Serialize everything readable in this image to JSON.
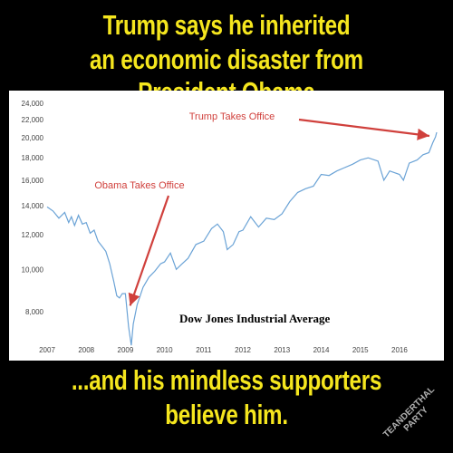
{
  "headline": {
    "line1": "Trump says he inherited",
    "line2": "an economic disaster from President Obama"
  },
  "caption": {
    "line1": "...and his mindless supporters",
    "line2": "believe him."
  },
  "watermark": {
    "line1": "TEANDERTHAL",
    "line2": "PARTY"
  },
  "colors": {
    "headline": "#f5e61e",
    "series": "#6ba3d6",
    "annotation": "#d0403c",
    "background": "#000000"
  },
  "chart_data": {
    "type": "line",
    "title": "Dow Jones Industrial Average",
    "xlabel": "",
    "ylabel": "",
    "xlim": [
      2007.0,
      2016.95
    ],
    "ylim": [
      7000,
      24000
    ],
    "y_log": true,
    "grid": false,
    "x_ticks": [
      "2007",
      "2008",
      "2009",
      "2010",
      "2011",
      "2012",
      "2013",
      "2014",
      "2015",
      "2016"
    ],
    "y_ticks": [
      "24,000",
      "22,000",
      "20,000",
      "18,000",
      "16,000",
      "14,000",
      "12,000",
      "10,000",
      "8,000"
    ],
    "y_tick_values": [
      24000,
      22000,
      20000,
      18000,
      16000,
      14000,
      12000,
      10000,
      8000
    ],
    "series": [
      {
        "x": [
          2007.0,
          2007.15,
          2007.3,
          2007.45,
          2007.55,
          2007.62,
          2007.7,
          2007.8,
          2007.9,
          2008.0,
          2008.1,
          2008.2,
          2008.3,
          2008.4,
          2008.5,
          2008.6,
          2008.7,
          2008.78,
          2008.85,
          2008.92,
          2009.0,
          2009.08,
          2009.15,
          2009.2,
          2009.3,
          2009.45,
          2009.6,
          2009.75,
          2009.9,
          2010.0,
          2010.15,
          2010.3,
          2010.45,
          2010.6,
          2010.8,
          2011.0,
          2011.2,
          2011.35,
          2011.5,
          2011.6,
          2011.75,
          2011.9,
          2012.0,
          2012.2,
          2012.4,
          2012.6,
          2012.8,
          2013.0,
          2013.2,
          2013.4,
          2013.6,
          2013.8,
          2014.0,
          2014.2,
          2014.4,
          2014.6,
          2014.8,
          2015.0,
          2015.2,
          2015.45,
          2015.6,
          2015.75,
          2016.0,
          2016.1,
          2016.25,
          2016.45,
          2016.6,
          2016.75,
          2016.85,
          2016.92,
          2016.95
        ],
        "y": [
          13900,
          13600,
          13100,
          13500,
          12800,
          13200,
          12600,
          13300,
          12700,
          12800,
          12100,
          12300,
          11600,
          11300,
          11000,
          10300,
          9400,
          8700,
          8600,
          8800,
          8800,
          7400,
          6700,
          7500,
          8300,
          9100,
          9600,
          9900,
          10300,
          10400,
          10900,
          10000,
          10300,
          10600,
          11400,
          11600,
          12400,
          12700,
          12200,
          11100,
          11400,
          12200,
          12300,
          13200,
          12500,
          13100,
          13000,
          13400,
          14300,
          15000,
          15300,
          15500,
          16500,
          16400,
          16800,
          17100,
          17400,
          17800,
          18000,
          17700,
          16000,
          16800,
          16500,
          16000,
          17500,
          17800,
          18300,
          18500,
          19500,
          20100,
          20600
        ]
      }
    ],
    "annotations": [
      {
        "text": "Trump Takes Office",
        "x": 2016.95,
        "y": 20600
      },
      {
        "text": "Obama Takes Office",
        "x": 2009.05,
        "y": 8100
      }
    ]
  }
}
